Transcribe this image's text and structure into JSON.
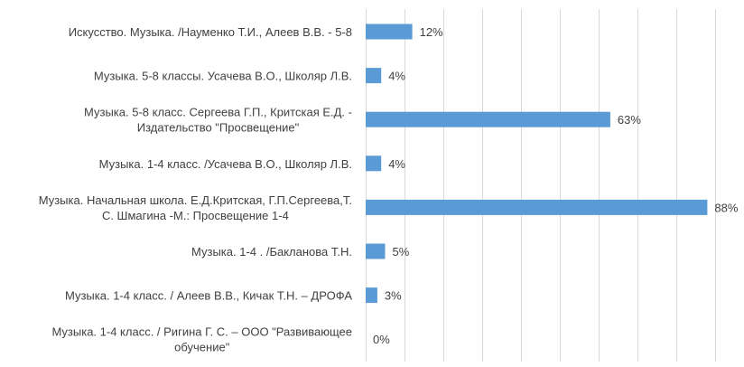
{
  "chart_data": {
    "type": "bar",
    "orientation": "horizontal",
    "categories": [
      "Искусство. Музыка. /Науменко Т.И., Алеев В.В. - 5-8",
      "Музыка. 5-8 классы. Усачева В.О., Школяр Л.В.",
      "Музыка. 5-8  класс. Сергеева Г.П., Критская Е.Д. - Издательство \"Просвещение\"",
      "Музыка. 1-4 класс. /Усачева В.О., Школяр Л.В.",
      "Музыка. Начальная школа. Е.Д.Критская, Г.П.Сергеева,Т. С.  Шмагина -М.: Просвещение 1-4",
      "Музыка. 1-4 . /Бакланова Т.Н.",
      "Музыка. 1-4 класс. / Алеев В.В., Кичак Т.Н. – ДРОФА",
      "Музыка. 1-4 класс. / Ригина Г. С. – ООО \"Развивающее обучение\""
    ],
    "category_lines": [
      [
        "Искусство. Музыка. /Науменко Т.И., Алеев В.В. - 5-8"
      ],
      [
        "Музыка. 5-8 классы. Усачева В.О., Школяр Л.В."
      ],
      [
        "Музыка. 5-8  класс. Сергеева Г.П., Критская Е.Д. -",
        "Издательство \"Просвещение\""
      ],
      [
        "Музыка. 1-4 класс. /Усачева В.О., Школяр Л.В."
      ],
      [
        "Музыка. Начальная школа. Е.Д.Критская, Г.П.Сергеева,Т.",
        "С.  Шмагина -М.: Просвещение 1-4"
      ],
      [
        "Музыка. 1-4 . /Бакланова Т.Н."
      ],
      [
        "Музыка. 1-4 класс. / Алеев В.В., Кичак Т.Н. – ДРОФА"
      ],
      [
        "Музыка. 1-4 класс. / Ригина Г. С. – ООО \"Развивающее",
        "обучение\""
      ]
    ],
    "values": [
      12,
      4,
      63,
      4,
      88,
      5,
      3,
      0
    ],
    "data_labels": [
      "12%",
      "4%",
      "63%",
      "4%",
      "88%",
      "5%",
      "3%",
      "0%"
    ],
    "xlim": [
      0,
      100
    ],
    "grid": true,
    "legend": "none",
    "title": "",
    "xlabel": "",
    "ylabel": "",
    "colors": {
      "bar": "#5b9bd5",
      "grid": "#d9d9d9",
      "text": "#404040"
    }
  }
}
